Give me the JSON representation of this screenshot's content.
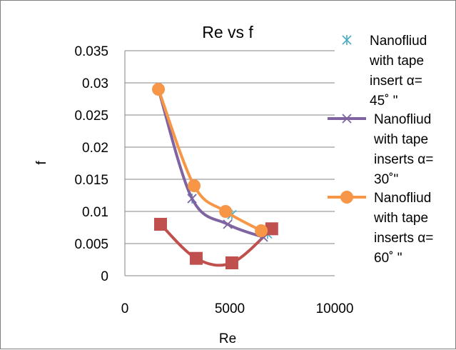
{
  "chart_data": {
    "type": "scatter",
    "title": "Re vs f",
    "xlabel": "Re",
    "ylabel": "f",
    "xlim": [
      0,
      10000
    ],
    "ylim": [
      0,
      0.035
    ],
    "x_ticks": [
      "0",
      "5000",
      "10000"
    ],
    "y_ticks": [
      "0",
      "0.005",
      "0.01",
      "0.015",
      "0.02",
      "0.025",
      "0.03",
      "0.035"
    ],
    "grid": "horizontal major gridlines",
    "legend_position": "right",
    "series": [
      {
        "name": "Nanofliud with tape insert α= 45˚ \"",
        "legend_lines": [
          "Nanofliud",
          "with tape",
          "insert α=",
          "45˚ \""
        ],
        "color": "#4bacc6",
        "marker": "asterisk",
        "line": false,
        "x": [
          1600,
          3200,
          5100,
          6800
        ],
        "y": [
          0.029,
          0.012,
          0.0095,
          0.0065
        ]
      },
      {
        "name": "Nanofliud with tape inserts α= 30˚\"",
        "legend_lines": [
          "Nanofliud",
          "with tape",
          "inserts α=",
          "30˚\""
        ],
        "color": "#8064a2",
        "marker": "x",
        "line": true,
        "x": [
          1600,
          3200,
          4900,
          6600
        ],
        "y": [
          0.029,
          0.012,
          0.008,
          0.006
        ]
      },
      {
        "name": "Nanofliud with tape inserts α= 60˚ \"",
        "legend_lines": [
          "Nanofliud",
          "with tape",
          "inserts  α=",
          "60˚ \""
        ],
        "color": "#f79646",
        "marker": "circle",
        "line": true,
        "x": [
          1600,
          3300,
          4800,
          6500
        ],
        "y": [
          0.029,
          0.014,
          0.01,
          0.007
        ]
      },
      {
        "name": "",
        "color": "#c0504d",
        "marker": "square",
        "line": true,
        "x": [
          1700,
          3400,
          5100,
          7000
        ],
        "y": [
          0.008,
          0.0027,
          0.002,
          0.0073
        ]
      }
    ]
  }
}
